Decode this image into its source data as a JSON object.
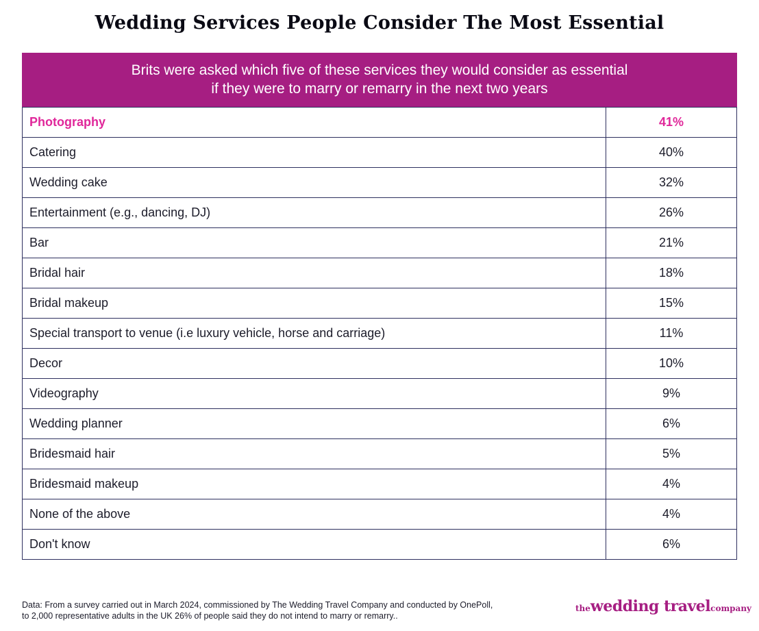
{
  "header": {
    "title": "Wedding Services People Consider The Most Essential"
  },
  "chart_data": {
    "type": "table",
    "subtitle_lines": [
      "Brits were asked which five of these services they would consider as essential",
      "if they were to marry or remarry in the next two years"
    ],
    "rows": [
      {
        "label": "Photography",
        "value": "41%"
      },
      {
        "label": "Catering",
        "value": "40%"
      },
      {
        "label": "Wedding cake",
        "value": "32%"
      },
      {
        "label": "Entertainment (e.g., dancing, DJ)",
        "value": "26%"
      },
      {
        "label": "Bar",
        "value": "21%"
      },
      {
        "label": "Bridal hair",
        "value": "18%"
      },
      {
        "label": "Bridal makeup",
        "value": "15%"
      },
      {
        "label": "Special transport to venue (i.e luxury vehicle, horse and carriage)",
        "value": "11%"
      },
      {
        "label": "Decor",
        "value": "10%"
      },
      {
        "label": "Videography",
        "value": "9%"
      },
      {
        "label": "Wedding planner",
        "value": "6%"
      },
      {
        "label": "Bridesmaid hair",
        "value": "5%"
      },
      {
        "label": "Bridesmaid makeup",
        "value": "4%"
      },
      {
        "label": "None of the above",
        "value": "4%"
      },
      {
        "label": "Don't know",
        "value": "6%"
      }
    ],
    "highlight_row": 0,
    "colors": {
      "banner": "#a61e82",
      "highlight_text": "#e0279a",
      "border": "#2d2f5e"
    }
  },
  "footer": {
    "note_lines": [
      "Data: From a survey carried out in March 2024, commissioned by The Wedding Travel Company and conducted by OnePoll,",
      "to 2,000 representative adults in the UK 26% of people said they do not intend to marry or remarry.."
    ],
    "logo": {
      "prefix": "the",
      "main": "wedding travel",
      "suffix": "company"
    }
  }
}
